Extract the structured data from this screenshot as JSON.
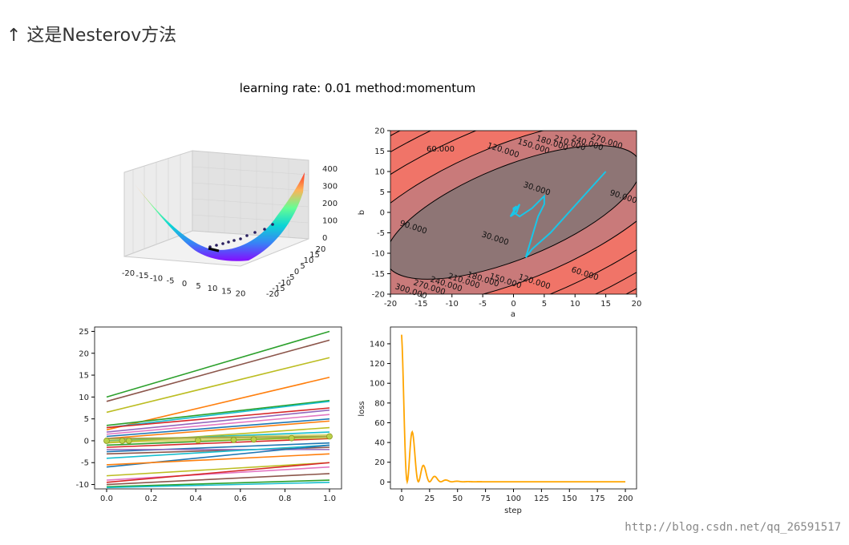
{
  "page": {
    "heading": "↑ 这是Nesterov方法",
    "figure_title": "learning rate: 0.01 method:momentum",
    "watermark": "http://blog.csdn.net/qq_26591517"
  },
  "chart_data": [
    {
      "type": "surface3d",
      "x_ticks": [
        "-20",
        "-15",
        "-10",
        "-5",
        "0",
        "5",
        "10",
        "15",
        "20"
      ],
      "y_ticks": [
        "-20",
        "-15",
        "-10",
        "-5",
        "0",
        "5",
        "10",
        "15",
        "20"
      ],
      "z_ticks": [
        "0",
        "100",
        "200",
        "300",
        "400"
      ],
      "colormap": "rainbow"
    },
    {
      "type": "contour",
      "xlabel": "a",
      "ylabel": "b",
      "xlim": [
        -20,
        20
      ],
      "ylim": [
        -20,
        20
      ],
      "x_ticks": [
        -20,
        -15,
        -10,
        -5,
        0,
        5,
        10,
        15,
        20
      ],
      "y_ticks": [
        -20,
        -15,
        -10,
        -5,
        0,
        5,
        10,
        15,
        20
      ],
      "contour_labels": [
        "60.000",
        "120.000",
        "150.000",
        "180.000",
        "210.000",
        "240.000",
        "270.000",
        "30.000",
        "90.000",
        "30.000",
        "90.000",
        "60.000",
        "120.000",
        "150.000",
        "180.000",
        "210.000",
        "240.000",
        "270.000",
        "300.000"
      ],
      "path": [
        [
          15,
          10
        ],
        [
          12,
          5
        ],
        [
          9,
          0
        ],
        [
          6,
          -5
        ],
        [
          3,
          -9
        ],
        [
          2,
          -11
        ],
        [
          3,
          -6
        ],
        [
          4,
          -1
        ],
        [
          5,
          2
        ],
        [
          5,
          4
        ],
        [
          3,
          1
        ],
        [
          1,
          -1
        ],
        [
          0,
          0
        ],
        [
          1,
          2
        ],
        [
          0.5,
          0
        ],
        [
          -0.5,
          -1
        ],
        [
          0.5,
          1.5
        ],
        [
          0,
          1
        ],
        [
          0,
          0.5
        ]
      ]
    },
    {
      "type": "line",
      "xlim": [
        0,
        1
      ],
      "ylim": [
        -11,
        26
      ],
      "x_ticks": [
        "0.0",
        "0.2",
        "0.4",
        "0.6",
        "0.8",
        "1.0"
      ],
      "y_ticks": [
        "-10",
        "-5",
        "0",
        "5",
        "10",
        "15",
        "20",
        "25"
      ],
      "series": [
        {
          "color": "#2ca02c",
          "values": [
            10,
            25
          ]
        },
        {
          "color": "#8c564b",
          "values": [
            9,
            23
          ]
        },
        {
          "color": "#bcbd22",
          "values": [
            6.5,
            19
          ]
        },
        {
          "color": "#ff7f0e",
          "values": [
            2.5,
            14.5
          ]
        },
        {
          "color": "#2ca02c",
          "values": [
            3.5,
            9.2
          ]
        },
        {
          "color": "#17becf",
          "values": [
            3,
            9
          ]
        },
        {
          "color": "#d62728",
          "values": [
            3,
            7.5
          ]
        },
        {
          "color": "#9467bd",
          "values": [
            2,
            7
          ]
        },
        {
          "color": "#e377c2",
          "values": [
            1.5,
            6
          ]
        },
        {
          "color": "#1f77b4",
          "values": [
            1,
            5
          ]
        },
        {
          "color": "#ff7f0e",
          "values": [
            0.5,
            4.5
          ]
        },
        {
          "color": "#bcbd22",
          "values": [
            -0.5,
            3
          ]
        },
        {
          "color": "#17becf",
          "values": [
            0,
            2
          ]
        },
        {
          "color": "#2ca02c",
          "values": [
            -1,
            1
          ]
        },
        {
          "color": "#d62728",
          "values": [
            -1.5,
            0.5
          ]
        },
        {
          "color": "#7f7f7f",
          "values": [
            0.5,
            1
          ]
        },
        {
          "color": "#1f77b4",
          "values": [
            -2.5,
            -0.5
          ]
        },
        {
          "color": "#8c564b",
          "values": [
            -3,
            -1.5
          ]
        },
        {
          "color": "#9467bd",
          "values": [
            -2,
            -2
          ]
        },
        {
          "color": "#17becf",
          "values": [
            -4,
            -1
          ]
        },
        {
          "color": "#1f77b4",
          "values": [
            -6,
            -1
          ]
        },
        {
          "color": "#ff7f0e",
          "values": [
            -5.5,
            -3
          ]
        },
        {
          "color": "#bcbd22",
          "values": [
            -8,
            -5
          ]
        },
        {
          "color": "#e377c2",
          "values": [
            -9,
            -6
          ]
        },
        {
          "color": "#d62728",
          "values": [
            -9.5,
            -5
          ]
        },
        {
          "color": "#8c564b",
          "values": [
            -10,
            -7.5
          ]
        },
        {
          "color": "#2ca02c",
          "values": [
            -10.5,
            -9
          ]
        },
        {
          "color": "#17becf",
          "values": [
            -10.7,
            -9.5
          ]
        }
      ],
      "points": [
        [
          0.0,
          0
        ],
        [
          0.07,
          0
        ],
        [
          0.1,
          0
        ],
        [
          0.41,
          0.1
        ],
        [
          0.57,
          0.2
        ],
        [
          0.66,
          0.3
        ],
        [
          0.83,
          0.6
        ],
        [
          1.0,
          1.0
        ]
      ]
    },
    {
      "type": "line",
      "xlabel": "step",
      "ylabel": "loss",
      "xlim": [
        -10,
        210
      ],
      "ylim": [
        -7,
        157
      ],
      "x_ticks": [
        0,
        25,
        50,
        75,
        100,
        125,
        150,
        175,
        200
      ],
      "y_ticks": [
        0,
        20,
        40,
        60,
        80,
        100,
        120,
        140
      ],
      "color": "#ffa500"
    }
  ]
}
